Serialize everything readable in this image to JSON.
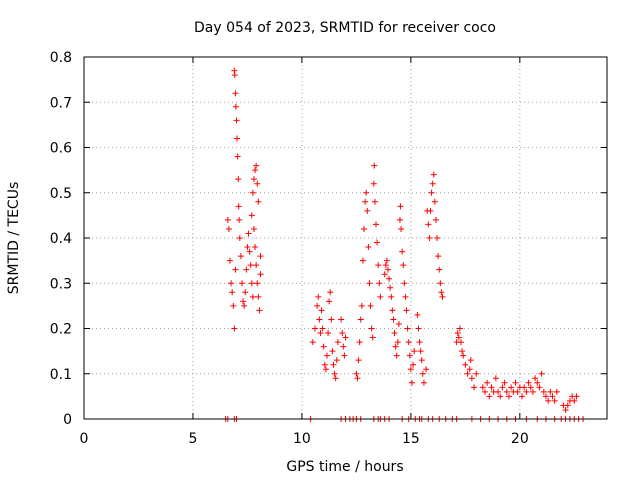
{
  "chart_data": {
    "type": "scatter",
    "title": "Day 054 of 2023, SRMTID for receiver coco",
    "xlabel": "GPS time / hours",
    "ylabel": "SRMTID / TECUs",
    "xlim": [
      0,
      24
    ],
    "ylim": [
      0,
      0.8
    ],
    "xticks": [
      0,
      5,
      10,
      15,
      20
    ],
    "yticks": [
      0,
      0.1,
      0.2,
      0.3,
      0.4,
      0.5,
      0.6,
      0.7,
      0.8
    ],
    "xtick_labels": [
      "0",
      "5",
      "10",
      "15",
      "20"
    ],
    "ytick_labels": [
      "0",
      "0.1",
      "0.2",
      "0.3",
      "0.4",
      "0.5",
      "0.6",
      "0.7",
      "0.8"
    ],
    "grid": true,
    "marker": "+",
    "color": "#ff0000",
    "series": [
      {
        "name": "SRMTID",
        "points": [
          [
            6.5,
            0.0
          ],
          [
            6.6,
            0.0
          ],
          [
            6.9,
            0.0
          ],
          [
            7.0,
            0.0
          ],
          [
            6.6,
            0.44
          ],
          [
            6.65,
            0.42
          ],
          [
            6.7,
            0.35
          ],
          [
            6.75,
            0.3
          ],
          [
            6.8,
            0.28
          ],
          [
            6.85,
            0.25
          ],
          [
            6.9,
            0.2
          ],
          [
            6.95,
            0.33
          ],
          [
            6.9,
            0.77
          ],
          [
            6.92,
            0.76
          ],
          [
            6.95,
            0.72
          ],
          [
            6.97,
            0.69
          ],
          [
            7.0,
            0.66
          ],
          [
            7.02,
            0.62
          ],
          [
            7.05,
            0.58
          ],
          [
            7.08,
            0.53
          ],
          [
            7.1,
            0.47
          ],
          [
            7.12,
            0.44
          ],
          [
            7.15,
            0.4
          ],
          [
            7.2,
            0.36
          ],
          [
            7.25,
            0.3
          ],
          [
            7.3,
            0.26
          ],
          [
            7.35,
            0.25
          ],
          [
            7.4,
            0.28
          ],
          [
            7.45,
            0.33
          ],
          [
            7.5,
            0.38
          ],
          [
            7.55,
            0.41
          ],
          [
            7.6,
            0.37
          ],
          [
            7.65,
            0.34
          ],
          [
            7.7,
            0.3
          ],
          [
            7.75,
            0.27
          ],
          [
            7.7,
            0.45
          ],
          [
            7.75,
            0.5
          ],
          [
            7.8,
            0.53
          ],
          [
            7.85,
            0.55
          ],
          [
            7.9,
            0.56
          ],
          [
            7.95,
            0.52
          ],
          [
            8.0,
            0.48
          ],
          [
            7.8,
            0.42
          ],
          [
            7.85,
            0.38
          ],
          [
            7.9,
            0.34
          ],
          [
            7.95,
            0.3
          ],
          [
            8.0,
            0.27
          ],
          [
            8.05,
            0.24
          ],
          [
            8.1,
            0.36
          ],
          [
            8.1,
            0.32
          ],
          [
            10.4,
            0.0
          ],
          [
            10.5,
            0.17
          ],
          [
            10.6,
            0.2
          ],
          [
            10.7,
            0.25
          ],
          [
            10.75,
            0.27
          ],
          [
            10.8,
            0.22
          ],
          [
            10.85,
            0.19
          ],
          [
            10.9,
            0.24
          ],
          [
            10.95,
            0.2
          ],
          [
            11.0,
            0.16
          ],
          [
            11.05,
            0.12
          ],
          [
            11.1,
            0.11
          ],
          [
            11.15,
            0.14
          ],
          [
            11.2,
            0.19
          ],
          [
            11.25,
            0.26
          ],
          [
            11.3,
            0.28
          ],
          [
            11.35,
            0.22
          ],
          [
            11.4,
            0.15
          ],
          [
            11.45,
            0.12
          ],
          [
            11.5,
            0.1
          ],
          [
            11.55,
            0.09
          ],
          [
            11.6,
            0.13
          ],
          [
            11.65,
            0.17
          ],
          [
            11.8,
            0.22
          ],
          [
            11.85,
            0.19
          ],
          [
            11.9,
            0.16
          ],
          [
            11.95,
            0.14
          ],
          [
            12.0,
            0.18
          ],
          [
            11.8,
            0.0
          ],
          [
            12.0,
            0.0
          ],
          [
            12.2,
            0.0
          ],
          [
            12.35,
            0.0
          ],
          [
            12.5,
            0.0
          ],
          [
            12.7,
            0.0
          ],
          [
            12.5,
            0.1
          ],
          [
            12.55,
            0.09
          ],
          [
            12.6,
            0.13
          ],
          [
            12.65,
            0.17
          ],
          [
            12.7,
            0.22
          ],
          [
            12.75,
            0.25
          ],
          [
            12.8,
            0.35
          ],
          [
            12.85,
            0.42
          ],
          [
            12.9,
            0.48
          ],
          [
            12.95,
            0.5
          ],
          [
            13.0,
            0.46
          ],
          [
            13.05,
            0.38
          ],
          [
            13.1,
            0.3
          ],
          [
            13.15,
            0.25
          ],
          [
            13.2,
            0.2
          ],
          [
            13.25,
            0.18
          ],
          [
            13.3,
            0.52
          ],
          [
            13.32,
            0.56
          ],
          [
            13.35,
            0.48
          ],
          [
            13.4,
            0.43
          ],
          [
            13.45,
            0.39
          ],
          [
            13.5,
            0.34
          ],
          [
            13.55,
            0.3
          ],
          [
            13.6,
            0.27
          ],
          [
            13.3,
            0.0
          ],
          [
            13.5,
            0.0
          ],
          [
            13.6,
            0.0
          ],
          [
            13.8,
            0.0
          ],
          [
            14.0,
            0.0
          ],
          [
            13.8,
            0.32
          ],
          [
            13.85,
            0.34
          ],
          [
            13.9,
            0.35
          ],
          [
            13.95,
            0.33
          ],
          [
            14.0,
            0.31
          ],
          [
            14.05,
            0.29
          ],
          [
            14.1,
            0.27
          ],
          [
            14.15,
            0.24
          ],
          [
            14.2,
            0.22
          ],
          [
            14.25,
            0.19
          ],
          [
            14.3,
            0.16
          ],
          [
            14.35,
            0.14
          ],
          [
            14.4,
            0.17
          ],
          [
            14.45,
            0.21
          ],
          [
            14.5,
            0.44
          ],
          [
            14.52,
            0.47
          ],
          [
            14.55,
            0.42
          ],
          [
            14.6,
            0.37
          ],
          [
            14.65,
            0.34
          ],
          [
            14.7,
            0.3
          ],
          [
            14.75,
            0.27
          ],
          [
            14.8,
            0.24
          ],
          [
            14.85,
            0.2
          ],
          [
            14.9,
            0.17
          ],
          [
            14.95,
            0.14
          ],
          [
            15.0,
            0.11
          ],
          [
            15.05,
            0.08
          ],
          [
            15.1,
            0.12
          ],
          [
            15.15,
            0.15
          ],
          [
            14.6,
            0.0
          ],
          [
            14.9,
            0.0
          ],
          [
            15.2,
            0.0
          ],
          [
            15.4,
            0.0
          ],
          [
            15.5,
            0.0
          ],
          [
            15.3,
            0.23
          ],
          [
            15.35,
            0.2
          ],
          [
            15.4,
            0.17
          ],
          [
            15.45,
            0.15
          ],
          [
            15.5,
            0.13
          ],
          [
            15.55,
            0.1
          ],
          [
            15.6,
            0.08
          ],
          [
            15.7,
            0.11
          ],
          [
            15.75,
            0.46
          ],
          [
            15.8,
            0.43
          ],
          [
            15.85,
            0.4
          ],
          [
            15.9,
            0.46
          ],
          [
            15.95,
            0.5
          ],
          [
            16.0,
            0.52
          ],
          [
            16.05,
            0.54
          ],
          [
            16.1,
            0.48
          ],
          [
            16.15,
            0.44
          ],
          [
            16.2,
            0.4
          ],
          [
            16.25,
            0.36
          ],
          [
            16.3,
            0.33
          ],
          [
            16.35,
            0.3
          ],
          [
            16.4,
            0.28
          ],
          [
            16.45,
            0.27
          ],
          [
            15.8,
            0.0
          ],
          [
            16.0,
            0.0
          ],
          [
            16.3,
            0.0
          ],
          [
            16.6,
            0.0
          ],
          [
            16.9,
            0.0
          ],
          [
            17.1,
            0.0
          ],
          [
            17.1,
            0.17
          ],
          [
            17.15,
            0.19
          ],
          [
            17.2,
            0.18
          ],
          [
            17.25,
            0.2
          ],
          [
            17.3,
            0.17
          ],
          [
            17.35,
            0.15
          ],
          [
            17.4,
            0.14
          ],
          [
            17.5,
            0.12
          ],
          [
            17.6,
            0.1
          ],
          [
            17.7,
            0.11
          ],
          [
            17.75,
            0.13
          ],
          [
            17.8,
            0.09
          ],
          [
            17.9,
            0.07
          ],
          [
            18.0,
            0.1
          ],
          [
            17.8,
            0.0
          ],
          [
            18.2,
            0.0
          ],
          [
            18.6,
            0.0
          ],
          [
            19.0,
            0.0
          ],
          [
            19.4,
            0.0
          ],
          [
            19.8,
            0.0
          ],
          [
            18.3,
            0.07
          ],
          [
            18.4,
            0.06
          ],
          [
            18.5,
            0.08
          ],
          [
            18.6,
            0.05
          ],
          [
            18.7,
            0.07
          ],
          [
            18.8,
            0.06
          ],
          [
            18.9,
            0.09
          ],
          [
            19.0,
            0.06
          ],
          [
            19.1,
            0.05
          ],
          [
            19.2,
            0.07
          ],
          [
            19.3,
            0.08
          ],
          [
            19.4,
            0.06
          ],
          [
            19.5,
            0.05
          ],
          [
            19.6,
            0.07
          ],
          [
            19.7,
            0.06
          ],
          [
            19.8,
            0.08
          ],
          [
            19.9,
            0.06
          ],
          [
            20.0,
            0.07
          ],
          [
            20.1,
            0.05
          ],
          [
            20.2,
            0.07
          ],
          [
            20.3,
            0.06
          ],
          [
            20.4,
            0.08
          ],
          [
            20.5,
            0.07
          ],
          [
            20.6,
            0.06
          ],
          [
            20.7,
            0.09
          ],
          [
            20.8,
            0.08
          ],
          [
            20.9,
            0.07
          ],
          [
            21.0,
            0.1
          ],
          [
            20.3,
            0.0
          ],
          [
            20.8,
            0.0
          ],
          [
            21.2,
            0.0
          ],
          [
            21.6,
            0.0
          ],
          [
            21.9,
            0.0
          ],
          [
            22.1,
            0.0
          ],
          [
            22.3,
            0.0
          ],
          [
            22.5,
            0.0
          ],
          [
            22.7,
            0.0
          ],
          [
            22.9,
            0.0
          ],
          [
            21.1,
            0.06
          ],
          [
            21.2,
            0.05
          ],
          [
            21.3,
            0.04
          ],
          [
            21.4,
            0.06
          ],
          [
            21.5,
            0.05
          ],
          [
            21.6,
            0.04
          ],
          [
            21.7,
            0.06
          ],
          [
            22.0,
            0.03
          ],
          [
            22.1,
            0.02
          ],
          [
            22.2,
            0.03
          ],
          [
            22.3,
            0.04
          ],
          [
            22.4,
            0.05
          ],
          [
            22.5,
            0.04
          ],
          [
            22.6,
            0.05
          ]
        ]
      }
    ]
  }
}
